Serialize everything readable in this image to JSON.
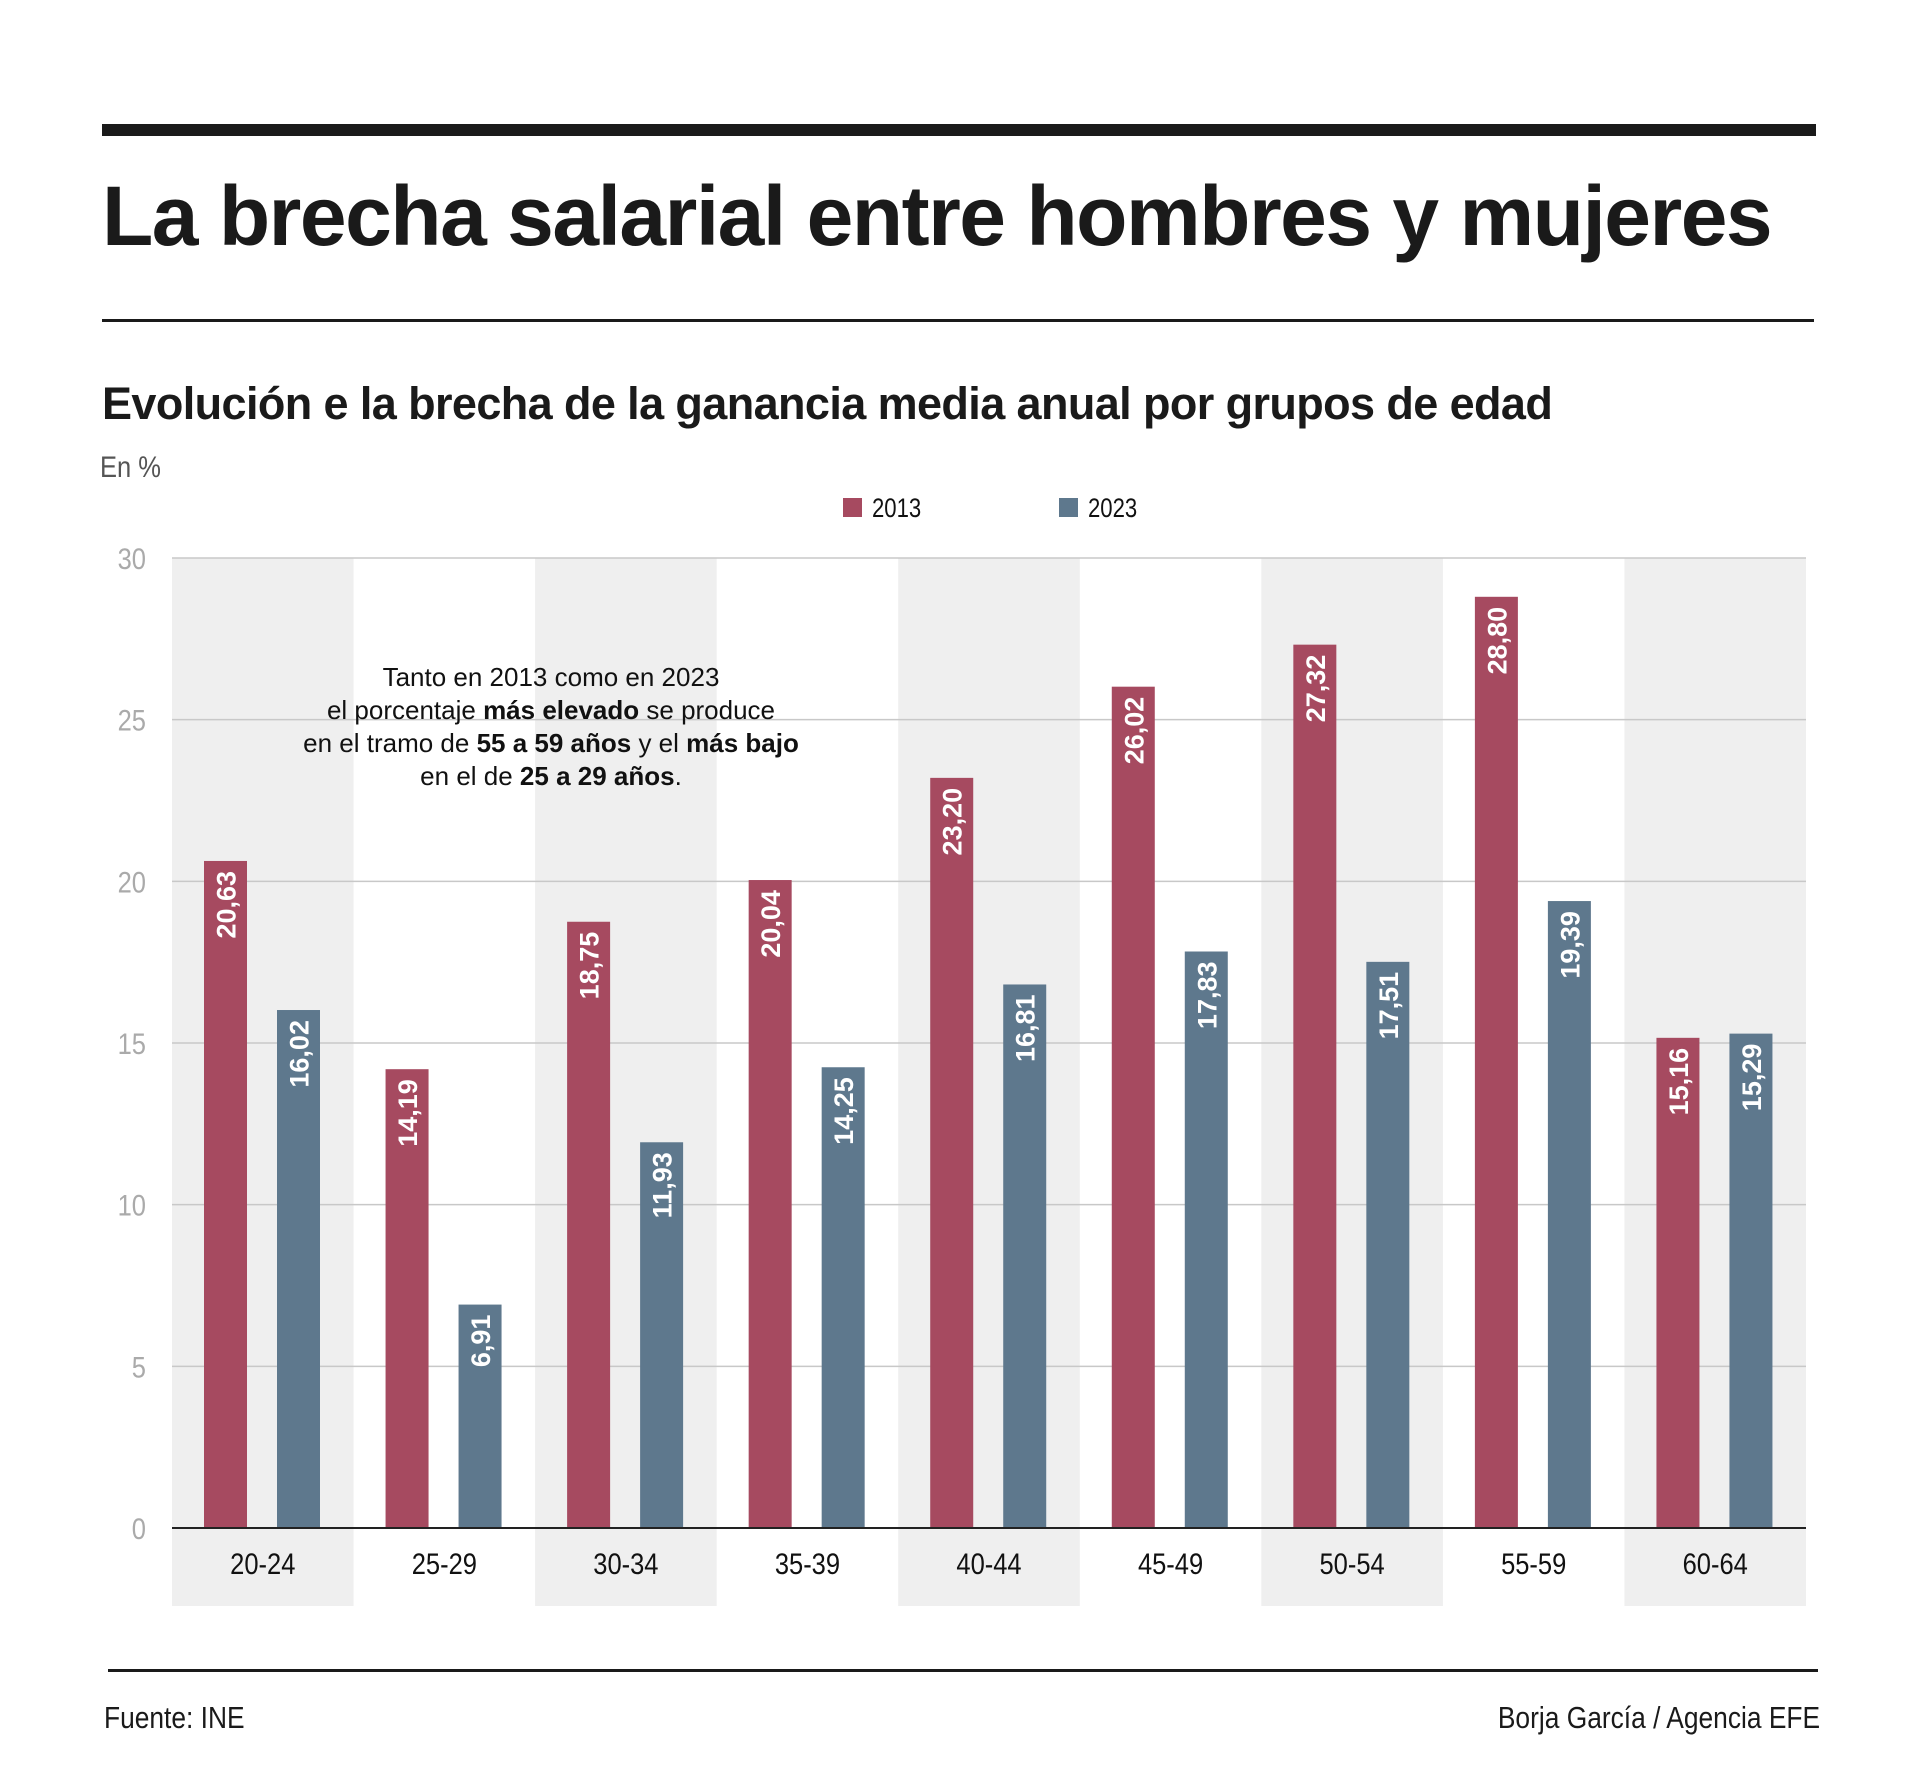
{
  "header": {
    "title": "La brecha salarial entre hombres y mujeres",
    "subtitle": "Evolución e la brecha de la ganancia media anual por grupos de edad",
    "unit": "En %"
  },
  "annotation": {
    "lines": [
      [
        {
          "text": "Tanto en 2013 como en 2023",
          "bold": false
        }
      ],
      [
        {
          "text": "el porcentaje ",
          "bold": false
        },
        {
          "text": "más elevado",
          "bold": true
        },
        {
          "text": " se produce",
          "bold": false
        }
      ],
      [
        {
          "text": "en el tramo de ",
          "bold": false
        },
        {
          "text": "55 a 59 años",
          "bold": true
        },
        {
          "text": " y el ",
          "bold": false
        },
        {
          "text": "más bajo",
          "bold": true
        }
      ],
      [
        {
          "text": "en el de ",
          "bold": false
        },
        {
          "text": "25 a 29 años",
          "bold": true
        },
        {
          "text": ".",
          "bold": false
        }
      ]
    ]
  },
  "footer": {
    "source": "Fuente: INE",
    "credit": "Borja García / Agencia EFE"
  },
  "colors": {
    "series_2013": "#a64a60",
    "series_2023": "#5e788d",
    "band": "#efefef",
    "grid": "#c8c8c8",
    "tick": "#aaaaaa"
  },
  "chart_data": {
    "type": "bar",
    "title": "Evolución e la brecha de la ganancia media anual por grupos de edad",
    "xlabel": "",
    "ylabel": "En %",
    "categories": [
      "20-24",
      "25-29",
      "30-34",
      "35-39",
      "40-44",
      "45-49",
      "50-54",
      "55-59",
      "60-64"
    ],
    "series": [
      {
        "name": "2013",
        "values": [
          20.63,
          14.19,
          18.75,
          20.04,
          23.2,
          26.02,
          27.32,
          28.8,
          15.16
        ],
        "labels": [
          "20,63",
          "14,19",
          "18,75",
          "20,04",
          "23,20",
          "26,02",
          "27,32",
          "28,80",
          "15,16"
        ]
      },
      {
        "name": "2023",
        "values": [
          16.02,
          6.91,
          11.93,
          14.25,
          16.81,
          17.83,
          17.51,
          19.39,
          15.29
        ],
        "labels": [
          "16,02",
          "6,91",
          "11,93",
          "14,25",
          "16,81",
          "17,83",
          "17,51",
          "19,39",
          "15,29"
        ]
      }
    ],
    "ylim": [
      0,
      30
    ],
    "yticks": [
      0,
      5,
      10,
      15,
      20,
      25,
      30
    ],
    "grid": true,
    "legend": "top-center",
    "data_labels": "inside-top-rotated"
  }
}
